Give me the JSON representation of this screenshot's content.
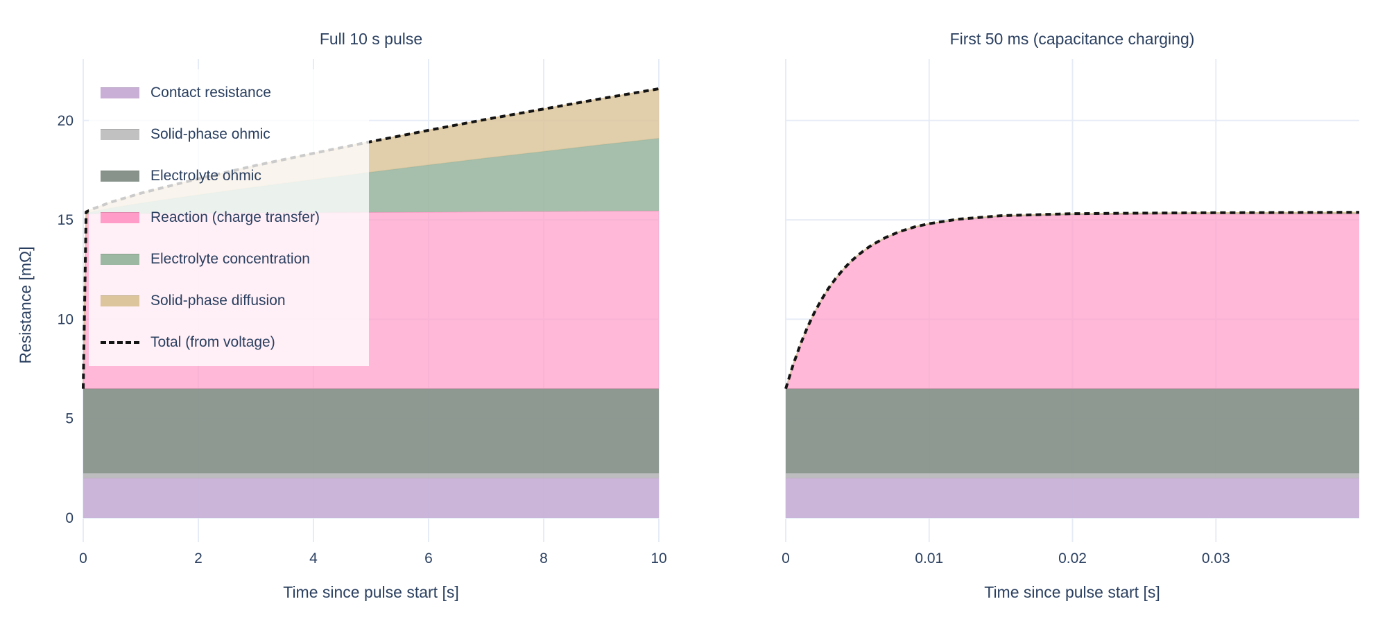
{
  "figure": {
    "background": "#ffffff",
    "font_color": "#2a3f5f",
    "grid_color": "#e6ecf6",
    "total_line_color": "#141414"
  },
  "titles": {
    "left": "Full 10 s pulse",
    "right": "First 50 ms (capacitance charging)"
  },
  "axes": {
    "x_label": "Time since pulse start [s]",
    "y_label": "Resistance [mΩ]"
  },
  "legend": {
    "items": [
      {
        "label": "Contact resistance",
        "color": "#c9aed6",
        "type": "area"
      },
      {
        "label": "Solid-phase ohmic",
        "color": "#c2c1c2",
        "type": "area"
      },
      {
        "label": "Electrolyte ohmic",
        "color": "#87938b",
        "type": "area"
      },
      {
        "label": "Reaction (charge transfer)",
        "color": "#ff9dc8",
        "type": "area"
      },
      {
        "label": "Electrolyte concentration",
        "color": "#9cb8a3",
        "type": "area"
      },
      {
        "label": "Solid-phase diffusion",
        "color": "#dcc59c",
        "type": "area"
      },
      {
        "label": "Total (from voltage)",
        "color": "#141414",
        "type": "dotted-line"
      }
    ]
  },
  "chart_data": [
    {
      "type": "area",
      "stacked": true,
      "title": "Full 10 s pulse",
      "xlabel": "Time since pulse start [s]",
      "ylabel": "Resistance [mΩ]",
      "xlim": [
        0,
        10
      ],
      "ylim": [
        0,
        23.1
      ],
      "grid": true,
      "legend_position": "top-left-inside",
      "x_ticks": [
        0,
        2,
        4,
        6,
        8,
        10
      ],
      "x_tick_labels": [
        "0",
        "2",
        "4",
        "6",
        "8",
        "10"
      ],
      "y_ticks": [
        0,
        5,
        10,
        15,
        20
      ],
      "y_tick_labels": [
        "0",
        "5",
        "10",
        "15",
        "20"
      ],
      "x": [
        0,
        0.05,
        0.2,
        0.5,
        1,
        2,
        3,
        4,
        5,
        6,
        7,
        8,
        9,
        10
      ],
      "series": [
        {
          "name": "Contact resistance",
          "color": "#c9aed6",
          "fill": "rgba(200,178,216,0.95)",
          "values": [
            2,
            2,
            2,
            2,
            2,
            2,
            2,
            2,
            2,
            2,
            2,
            2,
            2,
            2
          ]
        },
        {
          "name": "Solid-phase ohmic",
          "color": "#c2c1c2",
          "fill": "rgba(185,184,186,0.95)",
          "values": [
            0.25,
            0.25,
            0.25,
            0.25,
            0.25,
            0.25,
            0.25,
            0.25,
            0.25,
            0.25,
            0.25,
            0.25,
            0.25,
            0.25
          ]
        },
        {
          "name": "Electrolyte ohmic",
          "color": "#87938b",
          "fill": "rgba(135,147,139,0.95)",
          "values": [
            4.25,
            4.25,
            4.25,
            4.25,
            4.25,
            4.25,
            4.25,
            4.25,
            4.25,
            4.25,
            4.25,
            4.25,
            4.25,
            4.25
          ]
        },
        {
          "name": "Reaction (charge transfer)",
          "color": "#ff9dc8",
          "fill": "rgba(255,157,200,0.72)",
          "values": [
            0,
            8.8,
            8.8,
            8.81,
            8.82,
            8.83,
            8.85,
            8.86,
            8.88,
            8.89,
            8.91,
            8.92,
            8.94,
            8.95
          ]
        },
        {
          "name": "Electrolyte concentration",
          "color": "#9cb8a3",
          "fill": "rgba(156,184,163,0.9)",
          "values": [
            0,
            0.04,
            0.13,
            0.29,
            0.52,
            0.93,
            1.31,
            1.67,
            2.02,
            2.37,
            2.7,
            3.02,
            3.34,
            3.65
          ]
        },
        {
          "name": "Solid-phase diffusion",
          "color": "#dcc59c",
          "fill": "rgba(220,197,156,0.85)",
          "values": [
            0,
            0.06,
            0.16,
            0.31,
            0.5,
            0.81,
            1.08,
            1.32,
            1.54,
            1.75,
            1.95,
            2.14,
            2.32,
            2.5
          ]
        }
      ],
      "total_line": {
        "name": "Total (from voltage)",
        "color": "#141414",
        "style": "dotted",
        "description": "sum of all stacked components, from 6.5 at t=0 jumping to ~15.3 then rising to ~21.6 at t=10"
      }
    },
    {
      "type": "area",
      "stacked": true,
      "title": "First 50 ms (capacitance charging)",
      "xlabel": "Time since pulse start [s]",
      "ylabel": "Resistance [mΩ]",
      "xlim": [
        0,
        0.04
      ],
      "ylim": [
        0,
        23.1
      ],
      "grid": true,
      "x_ticks": [
        0,
        0.01,
        0.02,
        0.03
      ],
      "x_tick_labels": [
        "0",
        "0.01",
        "0.02",
        "0.03"
      ],
      "y_ticks": [
        0,
        5,
        10,
        15,
        20
      ],
      "y_tick_labels": [],
      "x": [
        0,
        0.0005,
        0.001,
        0.0015,
        0.002,
        0.0025,
        0.003,
        0.0035,
        0.004,
        0.0045,
        0.005,
        0.0055,
        0.006,
        0.007,
        0.008,
        0.009,
        0.01,
        0.012,
        0.015,
        0.02,
        0.025,
        0.03,
        0.035,
        0.04
      ],
      "series": [
        {
          "name": "Contact resistance",
          "color": "#c9aed6",
          "fill": "rgba(200,178,216,0.95)",
          "values": [
            2,
            2,
            2,
            2,
            2,
            2,
            2,
            2,
            2,
            2,
            2,
            2,
            2,
            2,
            2,
            2,
            2,
            2,
            2,
            2,
            2,
            2,
            2,
            2
          ]
        },
        {
          "name": "Solid-phase ohmic",
          "color": "#c2c1c2",
          "fill": "rgba(185,184,186,0.95)",
          "values": [
            0.25,
            0.25,
            0.25,
            0.25,
            0.25,
            0.25,
            0.25,
            0.25,
            0.25,
            0.25,
            0.25,
            0.25,
            0.25,
            0.25,
            0.25,
            0.25,
            0.25,
            0.25,
            0.25,
            0.25,
            0.25,
            0.25,
            0.25,
            0.25
          ]
        },
        {
          "name": "Electrolyte ohmic",
          "color": "#87938b",
          "fill": "rgba(135,147,139,0.95)",
          "values": [
            4.25,
            4.25,
            4.25,
            4.25,
            4.25,
            4.25,
            4.25,
            4.25,
            4.25,
            4.25,
            4.25,
            4.25,
            4.25,
            4.25,
            4.25,
            4.25,
            4.25,
            4.25,
            4.25,
            4.25,
            4.25,
            4.25,
            4.25,
            4.25
          ]
        },
        {
          "name": "Reaction (charge transfer)",
          "color": "#ff9dc8",
          "fill": "rgba(255,157,200,0.72)",
          "values": [
            0,
            1.17,
            2.19,
            3.07,
            3.83,
            4.49,
            5.07,
            5.56,
            5.99,
            6.37,
            6.69,
            6.97,
            7.22,
            7.61,
            7.91,
            8.13,
            8.29,
            8.51,
            8.68,
            8.77,
            8.79,
            8.8,
            8.8,
            8.8
          ]
        },
        {
          "name": "Electrolyte concentration",
          "color": "#9cb8a3",
          "fill": "rgba(156,184,163,0.9)",
          "values": [
            0,
            0.0004,
            0.0008,
            0.0011,
            0.0015,
            0.0019,
            0.0023,
            0.0026,
            0.003,
            0.0034,
            0.0038,
            0.0041,
            0.0045,
            0.0053,
            0.006,
            0.0068,
            0.0075,
            0.009,
            0.0113,
            0.015,
            0.0188,
            0.0225,
            0.0263,
            0.03
          ]
        },
        {
          "name": "Solid-phase diffusion",
          "color": "#dcc59c",
          "fill": "rgba(220,197,156,0.85)",
          "values": [
            0,
            0.0006,
            0.0013,
            0.0019,
            0.0025,
            0.0031,
            0.0038,
            0.0044,
            0.005,
            0.0056,
            0.0063,
            0.0069,
            0.0075,
            0.0088,
            0.01,
            0.0113,
            0.0125,
            0.015,
            0.0188,
            0.025,
            0.0313,
            0.0375,
            0.0438,
            0.05
          ]
        }
      ],
      "total_line": {
        "name": "Total (from voltage)",
        "color": "#141414",
        "style": "dotted",
        "description": "exponential rise from 6.5 at t=0 saturating at ~15.3 by ~15 ms"
      }
    }
  ]
}
